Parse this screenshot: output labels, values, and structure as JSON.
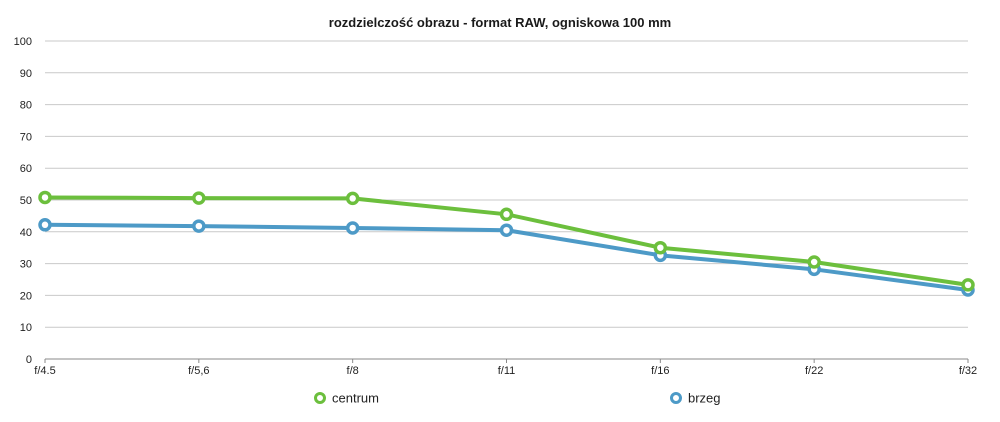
{
  "chart_data": {
    "type": "line",
    "title": "rozdzielczość obrazu - format RAW, ogniskowa 100 mm",
    "xlabel": "",
    "ylabel": "",
    "categories": [
      "f/4.5",
      "f/5,6",
      "f/8",
      "f/11",
      "f/16",
      "f/22",
      "f/32"
    ],
    "ylim": [
      0,
      100
    ],
    "yticks": [
      0,
      10,
      20,
      30,
      40,
      50,
      60,
      70,
      80,
      90,
      100
    ],
    "grid": true,
    "legend_position": "bottom",
    "series": [
      {
        "name": "centrum",
        "color": "#6cbf3d",
        "values": [
          50.8,
          50.6,
          50.5,
          45.5,
          35.0,
          30.5,
          23.3
        ]
      },
      {
        "name": "brzeg",
        "color": "#4d9ac7",
        "values": [
          42.2,
          41.8,
          41.2,
          40.5,
          32.6,
          28.2,
          21.7
        ]
      }
    ]
  }
}
